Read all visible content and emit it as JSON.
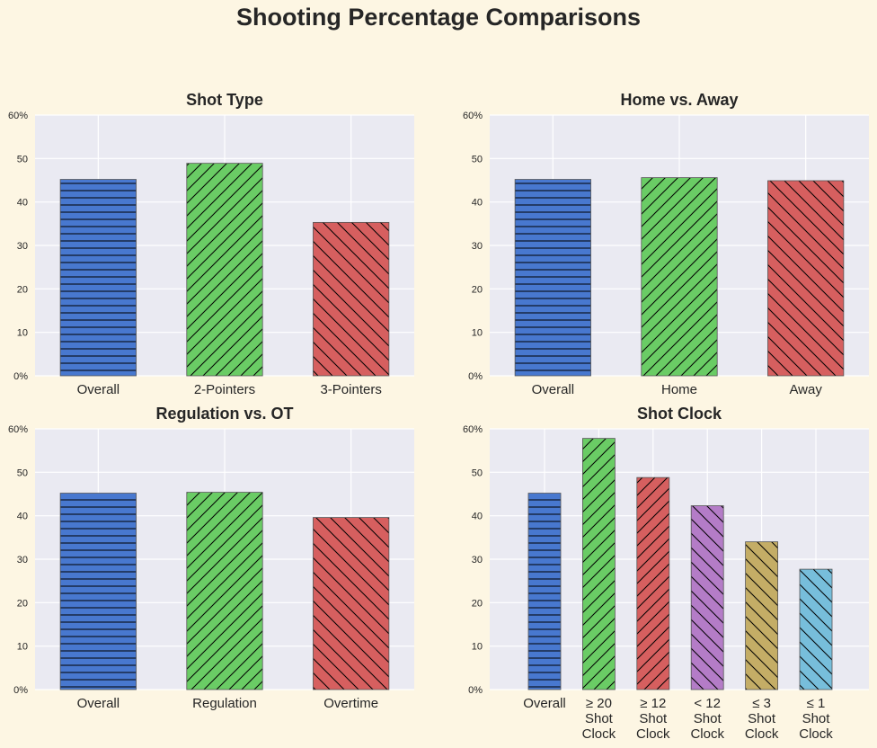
{
  "figure_title": "Shooting Percentage Comparisons",
  "colors": {
    "background": "#fdf6e3",
    "plot_background": "#eaeaf2",
    "grid": "#ffffff",
    "text": "#262626",
    "blue": "#4878cf",
    "green": "#6acc65",
    "red": "#d65f5f",
    "purple": "#b47cc7",
    "tan": "#c4ad66",
    "cyan": "#77bedb"
  },
  "chart_data": [
    {
      "type": "bar",
      "title": "Shot Type",
      "categories": [
        "Overall",
        "2-Pointers",
        "3-Pointers"
      ],
      "values": [
        45.2,
        48.9,
        35.3
      ],
      "colors": [
        "blue",
        "green",
        "red"
      ],
      "hatches": [
        "horizontal",
        "forward-diagonal",
        "back-diagonal"
      ],
      "ylim": [
        0,
        60
      ],
      "yticks": [
        "0%",
        "10",
        "20",
        "30",
        "40",
        "50",
        "60%"
      ],
      "grid": true
    },
    {
      "type": "bar",
      "title": "Home vs. Away",
      "categories": [
        "Overall",
        "Home",
        "Away"
      ],
      "values": [
        45.2,
        45.6,
        44.9
      ],
      "colors": [
        "blue",
        "green",
        "red"
      ],
      "hatches": [
        "horizontal",
        "forward-diagonal",
        "back-diagonal"
      ],
      "ylim": [
        0,
        60
      ],
      "yticks": [
        "0%",
        "10",
        "20",
        "30",
        "40",
        "50",
        "60%"
      ],
      "grid": true
    },
    {
      "type": "bar",
      "title": "Regulation vs. OT",
      "categories": [
        "Overall",
        "Regulation",
        "Overtime"
      ],
      "values": [
        45.2,
        45.4,
        39.6
      ],
      "colors": [
        "blue",
        "green",
        "red"
      ],
      "hatches": [
        "horizontal",
        "forward-diagonal",
        "back-diagonal"
      ],
      "ylim": [
        0,
        60
      ],
      "yticks": [
        "0%",
        "10",
        "20",
        "30",
        "40",
        "50",
        "60%"
      ],
      "grid": true
    },
    {
      "type": "bar",
      "title": "Shot Clock",
      "categories": [
        "Overall",
        "≥ 20\nShot\nClock",
        "≥ 12\nShot\nClock",
        "< 12\nShot\nClock",
        "≤ 3\nShot\nClock",
        "≤ 1\nShot\nClock"
      ],
      "values": [
        45.2,
        57.8,
        48.8,
        42.3,
        34.0,
        27.7
      ],
      "colors": [
        "blue",
        "green",
        "red",
        "purple",
        "tan",
        "cyan"
      ],
      "hatches": [
        "horizontal",
        "forward-diagonal",
        "forward-diagonal",
        "back-diagonal",
        "back-diagonal",
        "back-diagonal"
      ],
      "ylim": [
        0,
        60
      ],
      "yticks": [
        "0%",
        "10",
        "20",
        "30",
        "40",
        "50",
        "60%"
      ],
      "grid": true
    }
  ]
}
